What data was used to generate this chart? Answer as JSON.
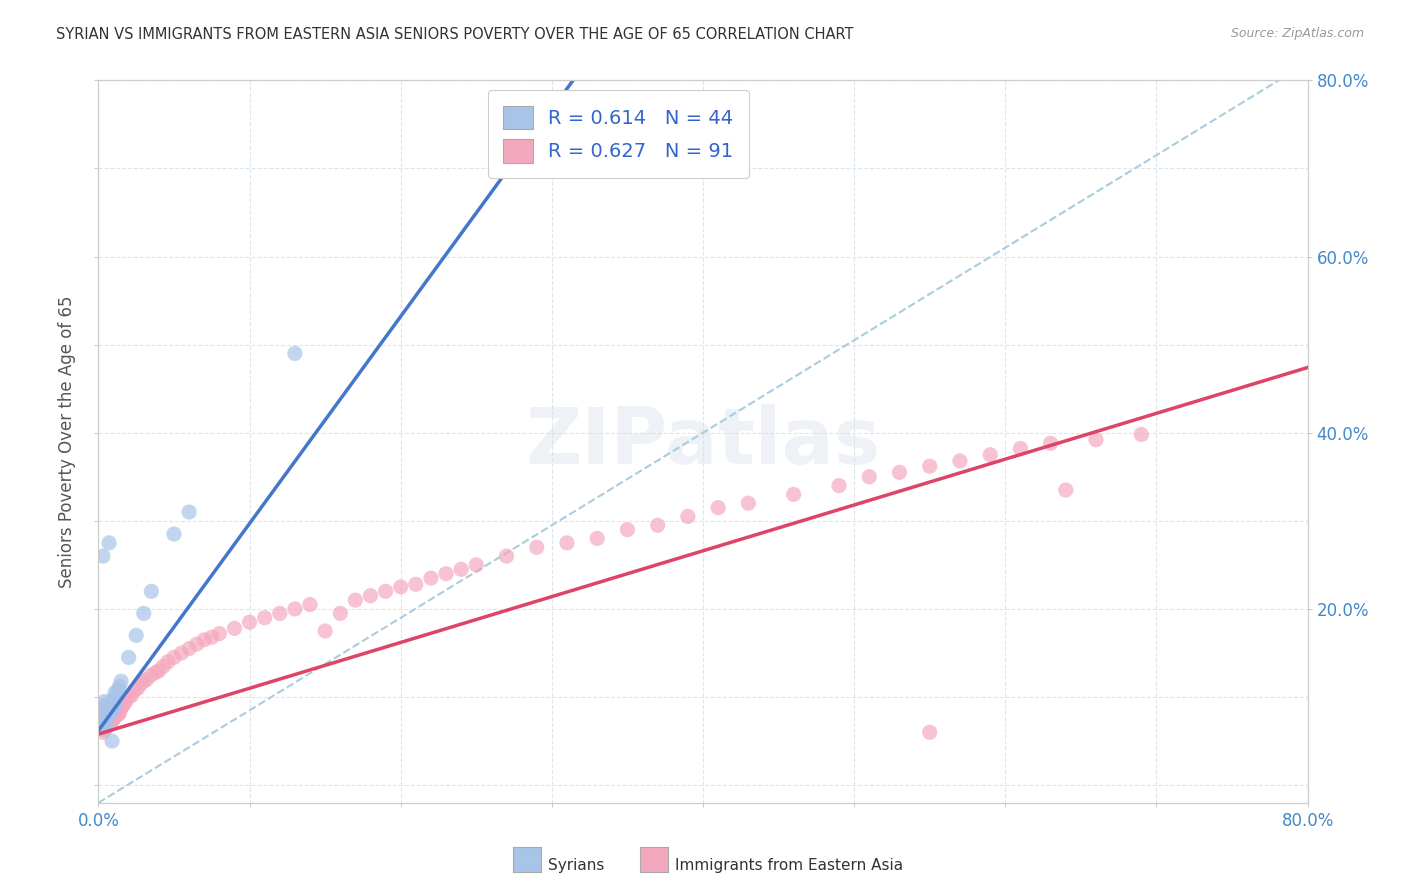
{
  "title": "SYRIAN VS IMMIGRANTS FROM EASTERN ASIA SENIORS POVERTY OVER THE AGE OF 65 CORRELATION CHART",
  "source": "Source: ZipAtlas.com",
  "ylabel": "Seniors Poverty Over the Age of 65",
  "xlim": [
    0.0,
    0.8
  ],
  "ylim": [
    -0.02,
    0.8
  ],
  "right_yticks": [
    0.2,
    0.4,
    0.6,
    0.8
  ],
  "right_ytick_labels": [
    "20.0%",
    "40.0%",
    "60.0%",
    "80.0%"
  ],
  "syrian_R": 0.614,
  "syrian_N": 44,
  "eastern_asia_R": 0.627,
  "eastern_asia_N": 91,
  "syrian_color": "#a8c4e8",
  "eastern_asia_color": "#f4a8be",
  "syrian_line_color": "#4477cc",
  "eastern_asia_line_color": "#dd4466",
  "dashed_line_color": "#aaccdd",
  "legend_text_color": "#3366cc",
  "title_color": "#333333",
  "axis_label_color": "#555555",
  "tick_color": "#4488cc",
  "watermark": "ZIPatlas",
  "watermark_color": "#d0dce8",
  "background_color": "#ffffff",
  "grid_color": "#dce6f0",
  "syrian_x": [
    0.001,
    0.001,
    0.001,
    0.002,
    0.002,
    0.002,
    0.002,
    0.002,
    0.003,
    0.003,
    0.003,
    0.004,
    0.004,
    0.004,
    0.005,
    0.005,
    0.005,
    0.006,
    0.006,
    0.006,
    0.007,
    0.007,
    0.008,
    0.008,
    0.009,
    0.009,
    0.01,
    0.01,
    0.011,
    0.011,
    0.012,
    0.013,
    0.014,
    0.015,
    0.02,
    0.025,
    0.03,
    0.035,
    0.05,
    0.06,
    0.003,
    0.007,
    0.13,
    0.009
  ],
  "syrian_y": [
    0.07,
    0.075,
    0.08,
    0.065,
    0.07,
    0.078,
    0.082,
    0.09,
    0.068,
    0.072,
    0.085,
    0.075,
    0.08,
    0.095,
    0.07,
    0.082,
    0.09,
    0.078,
    0.085,
    0.092,
    0.08,
    0.088,
    0.085,
    0.092,
    0.085,
    0.095,
    0.088,
    0.098,
    0.092,
    0.105,
    0.1,
    0.108,
    0.112,
    0.118,
    0.145,
    0.17,
    0.195,
    0.22,
    0.285,
    0.31,
    0.26,
    0.275,
    0.49,
    0.05
  ],
  "eastern_asia_x": [
    0.001,
    0.002,
    0.002,
    0.003,
    0.003,
    0.003,
    0.004,
    0.004,
    0.004,
    0.005,
    0.005,
    0.005,
    0.006,
    0.006,
    0.007,
    0.007,
    0.007,
    0.008,
    0.008,
    0.009,
    0.009,
    0.01,
    0.01,
    0.011,
    0.011,
    0.012,
    0.013,
    0.013,
    0.014,
    0.015,
    0.016,
    0.017,
    0.018,
    0.02,
    0.022,
    0.024,
    0.026,
    0.028,
    0.03,
    0.032,
    0.035,
    0.038,
    0.04,
    0.043,
    0.046,
    0.05,
    0.055,
    0.06,
    0.065,
    0.07,
    0.075,
    0.08,
    0.09,
    0.1,
    0.11,
    0.12,
    0.13,
    0.14,
    0.15,
    0.16,
    0.17,
    0.18,
    0.19,
    0.2,
    0.21,
    0.22,
    0.23,
    0.24,
    0.25,
    0.27,
    0.29,
    0.31,
    0.33,
    0.35,
    0.37,
    0.39,
    0.41,
    0.43,
    0.46,
    0.49,
    0.51,
    0.53,
    0.55,
    0.57,
    0.59,
    0.61,
    0.63,
    0.66,
    0.69,
    0.64,
    0.55
  ],
  "eastern_asia_y": [
    0.065,
    0.068,
    0.072,
    0.06,
    0.065,
    0.075,
    0.063,
    0.068,
    0.078,
    0.065,
    0.072,
    0.08,
    0.068,
    0.075,
    0.068,
    0.075,
    0.082,
    0.07,
    0.078,
    0.072,
    0.08,
    0.075,
    0.082,
    0.078,
    0.085,
    0.082,
    0.08,
    0.088,
    0.082,
    0.088,
    0.09,
    0.092,
    0.095,
    0.1,
    0.102,
    0.108,
    0.11,
    0.115,
    0.118,
    0.12,
    0.125,
    0.128,
    0.13,
    0.135,
    0.14,
    0.145,
    0.15,
    0.155,
    0.16,
    0.165,
    0.168,
    0.172,
    0.178,
    0.185,
    0.19,
    0.195,
    0.2,
    0.205,
    0.175,
    0.195,
    0.21,
    0.215,
    0.22,
    0.225,
    0.228,
    0.235,
    0.24,
    0.245,
    0.25,
    0.26,
    0.27,
    0.275,
    0.28,
    0.29,
    0.295,
    0.305,
    0.315,
    0.32,
    0.33,
    0.34,
    0.35,
    0.355,
    0.362,
    0.368,
    0.375,
    0.382,
    0.388,
    0.392,
    0.398,
    0.335,
    0.06
  ],
  "syrian_line_slope": 2.35,
  "syrian_line_intercept": 0.062,
  "eastern_asia_line_slope": 0.52,
  "eastern_asia_line_intercept": 0.058,
  "dashed_line_slope": 1.05,
  "dashed_line_intercept": -0.02
}
